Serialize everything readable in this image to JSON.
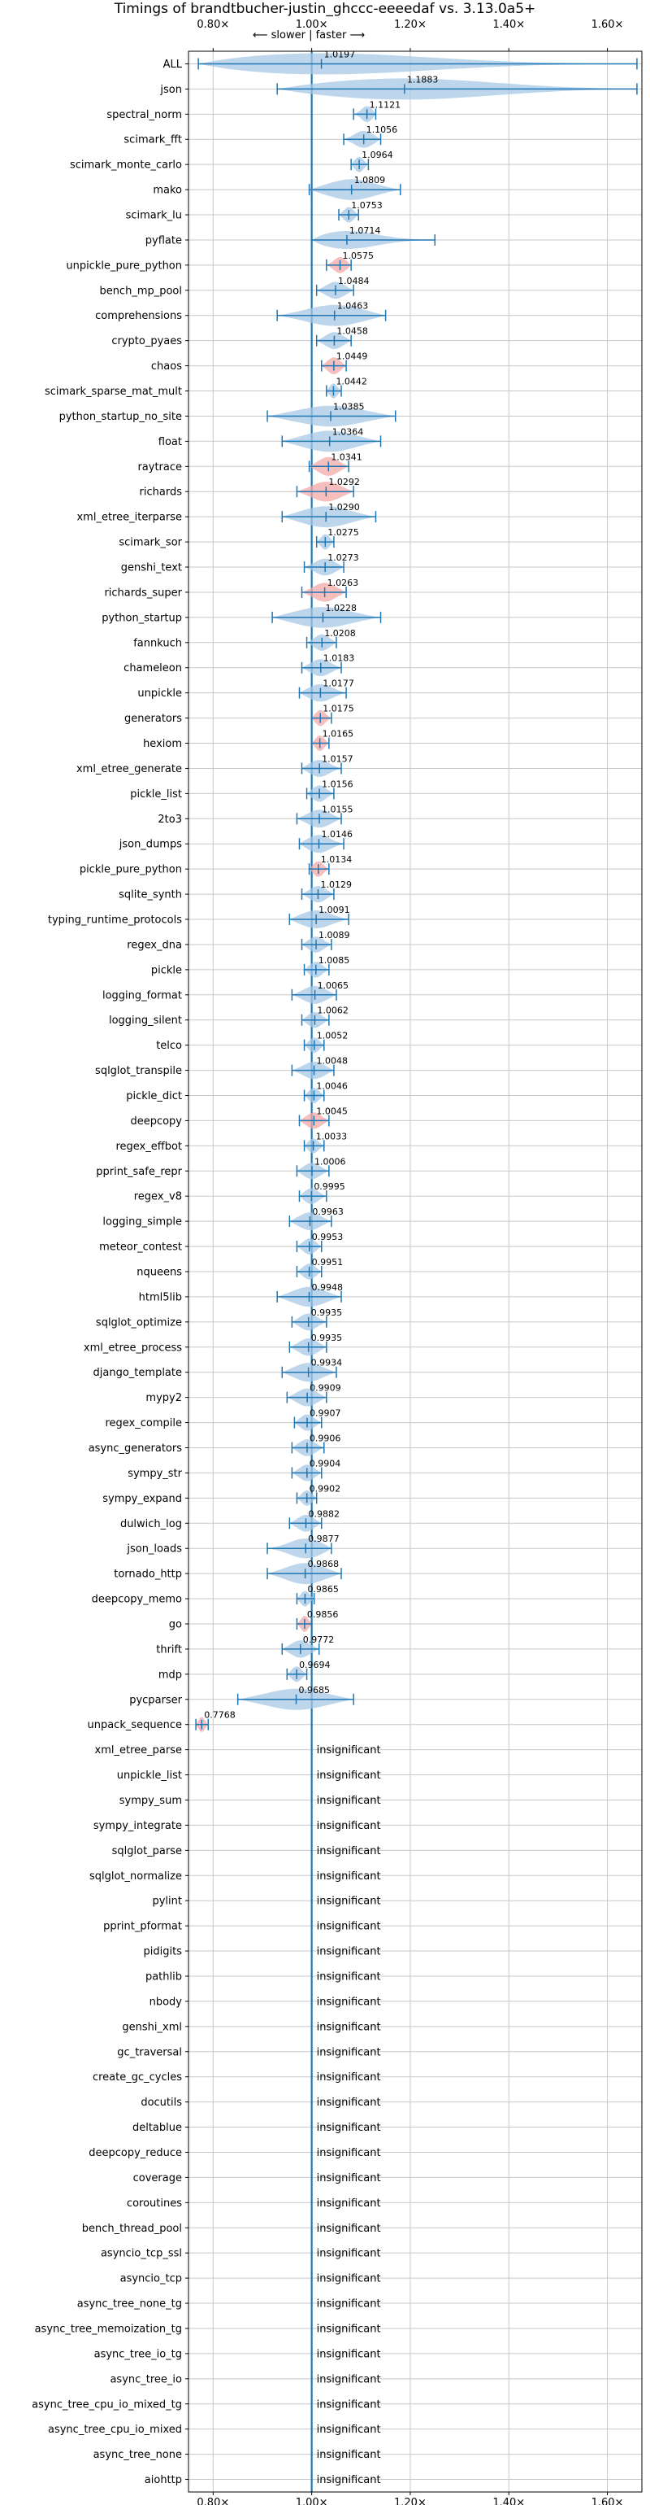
{
  "chart_data": {
    "type": "violin",
    "title": "Timings of brandtbucher-justin_ghccc-eeeedaf vs. 3.13.0a5+",
    "direction_label": "⟵ slower | faster ⟶",
    "x_tick_values": [
      0.8,
      1.0,
      1.2,
      1.4,
      1.6
    ],
    "x_tick_labels": [
      "0.80×",
      "1.00×",
      "1.20×",
      "1.40×",
      "1.60×"
    ],
    "xlim": [
      0.75,
      1.67
    ],
    "insignificant_label": "insignificant",
    "colors": {
      "violin": "#a7c8e6",
      "accent": "#1f77b4",
      "highlight": "#f4a8a8",
      "grid": "#c8c8c8"
    },
    "benchmarks": [
      {
        "name": "ALL",
        "value": 1.0197,
        "label": "1.0197",
        "min": 0.77,
        "max": 1.66,
        "width": 0.11,
        "highlight": false
      },
      {
        "name": "json",
        "value": 1.1883,
        "label": "1.1883",
        "min": 0.93,
        "max": 1.66,
        "width": 0.35,
        "highlight": false
      },
      {
        "name": "spectral_norm",
        "value": 1.1121,
        "label": "1.1121",
        "min": 1.085,
        "max": 1.13,
        "width": 0.03,
        "highlight": false
      },
      {
        "name": "scimark_fft",
        "value": 1.1056,
        "label": "1.1056",
        "min": 1.065,
        "max": 1.14,
        "width": 0.04,
        "highlight": false
      },
      {
        "name": "scimark_monte_carlo",
        "value": 1.0964,
        "label": "1.0964",
        "min": 1.08,
        "max": 1.115,
        "width": 0.025,
        "highlight": false
      },
      {
        "name": "mako",
        "value": 1.0809,
        "label": "1.0809",
        "min": 0.995,
        "max": 1.18,
        "width": 0.08,
        "highlight": false
      },
      {
        "name": "scimark_lu",
        "value": 1.0753,
        "label": "1.0753",
        "min": 1.055,
        "max": 1.095,
        "width": 0.025,
        "highlight": false
      },
      {
        "name": "pyflate",
        "value": 1.0714,
        "label": "1.0714",
        "min": 1.0,
        "max": 1.25,
        "width": 0.05,
        "highlight": false
      },
      {
        "name": "unpickle_pure_python",
        "value": 1.0575,
        "label": "1.0575",
        "min": 1.03,
        "max": 1.08,
        "width": 0.03,
        "highlight": true
      },
      {
        "name": "bench_mp_pool",
        "value": 1.0484,
        "label": "1.0484",
        "min": 1.01,
        "max": 1.085,
        "width": 0.04,
        "highlight": false
      },
      {
        "name": "comprehensions",
        "value": 1.0463,
        "label": "1.0463",
        "min": 0.93,
        "max": 1.15,
        "width": 0.1,
        "highlight": false
      },
      {
        "name": "crypto_pyaes",
        "value": 1.0458,
        "label": "1.0458",
        "min": 1.01,
        "max": 1.08,
        "width": 0.04,
        "highlight": false
      },
      {
        "name": "chaos",
        "value": 1.0449,
        "label": "1.0449",
        "min": 1.02,
        "max": 1.07,
        "width": 0.04,
        "highlight": true
      },
      {
        "name": "scimark_sparse_mat_mult",
        "value": 1.0442,
        "label": "1.0442",
        "min": 1.03,
        "max": 1.06,
        "width": 0.02,
        "highlight": false
      },
      {
        "name": "python_startup_no_site",
        "value": 1.0385,
        "label": "1.0385",
        "min": 0.91,
        "max": 1.17,
        "width": 0.08,
        "highlight": false
      },
      {
        "name": "float",
        "value": 1.0364,
        "label": "1.0364",
        "min": 0.94,
        "max": 1.14,
        "width": 0.09,
        "highlight": false
      },
      {
        "name": "raytrace",
        "value": 1.0341,
        "label": "1.0341",
        "min": 0.995,
        "max": 1.075,
        "width": 0.06,
        "highlight": true
      },
      {
        "name": "richards",
        "value": 1.0292,
        "label": "1.0292",
        "min": 0.97,
        "max": 1.085,
        "width": 0.07,
        "highlight": true
      },
      {
        "name": "xml_etree_iterparse",
        "value": 1.029,
        "label": "1.0290",
        "min": 0.94,
        "max": 1.13,
        "width": 0.09,
        "highlight": false
      },
      {
        "name": "scimark_sor",
        "value": 1.0275,
        "label": "1.0275",
        "min": 1.01,
        "max": 1.045,
        "width": 0.025,
        "highlight": false
      },
      {
        "name": "genshi_text",
        "value": 1.0273,
        "label": "1.0273",
        "min": 0.985,
        "max": 1.065,
        "width": 0.04,
        "highlight": false
      },
      {
        "name": "richards_super",
        "value": 1.0263,
        "label": "1.0263",
        "min": 0.98,
        "max": 1.07,
        "width": 0.06,
        "highlight": true
      },
      {
        "name": "python_startup",
        "value": 1.0228,
        "label": "1.0228",
        "min": 0.92,
        "max": 1.14,
        "width": 0.08,
        "highlight": false
      },
      {
        "name": "fannkuch",
        "value": 1.0208,
        "label": "1.0208",
        "min": 0.99,
        "max": 1.05,
        "width": 0.035,
        "highlight": false
      },
      {
        "name": "chameleon",
        "value": 1.0183,
        "label": "1.0183",
        "min": 0.98,
        "max": 1.06,
        "width": 0.04,
        "highlight": false
      },
      {
        "name": "unpickle",
        "value": 1.0177,
        "label": "1.0177",
        "min": 0.975,
        "max": 1.07,
        "width": 0.045,
        "highlight": false
      },
      {
        "name": "generators",
        "value": 1.0175,
        "label": "1.0175",
        "min": 1.0,
        "max": 1.04,
        "width": 0.03,
        "highlight": true
      },
      {
        "name": "hexiom",
        "value": 1.0165,
        "label": "1.0165",
        "min": 1.0,
        "max": 1.035,
        "width": 0.025,
        "highlight": true
      },
      {
        "name": "xml_etree_generate",
        "value": 1.0157,
        "label": "1.0157",
        "min": 0.98,
        "max": 1.06,
        "width": 0.04,
        "highlight": false
      },
      {
        "name": "pickle_list",
        "value": 1.0156,
        "label": "1.0156",
        "min": 0.99,
        "max": 1.045,
        "width": 0.035,
        "highlight": false
      },
      {
        "name": "2to3",
        "value": 1.0155,
        "label": "1.0155",
        "min": 0.97,
        "max": 1.06,
        "width": 0.05,
        "highlight": false
      },
      {
        "name": "json_dumps",
        "value": 1.0146,
        "label": "1.0146",
        "min": 0.975,
        "max": 1.065,
        "width": 0.05,
        "highlight": false
      },
      {
        "name": "pickle_pure_python",
        "value": 1.0134,
        "label": "1.0134",
        "min": 0.995,
        "max": 1.035,
        "width": 0.025,
        "highlight": true
      },
      {
        "name": "sqlite_synth",
        "value": 1.0129,
        "label": "1.0129",
        "min": 0.98,
        "max": 1.045,
        "width": 0.035,
        "highlight": false
      },
      {
        "name": "typing_runtime_protocols",
        "value": 1.0091,
        "label": "1.0091",
        "min": 0.955,
        "max": 1.075,
        "width": 0.05,
        "highlight": false
      },
      {
        "name": "regex_dna",
        "value": 1.0089,
        "label": "1.0089",
        "min": 0.98,
        "max": 1.04,
        "width": 0.03,
        "highlight": false
      },
      {
        "name": "pickle",
        "value": 1.0085,
        "label": "1.0085",
        "min": 0.985,
        "max": 1.035,
        "width": 0.03,
        "highlight": false
      },
      {
        "name": "logging_format",
        "value": 1.0065,
        "label": "1.0065",
        "min": 0.96,
        "max": 1.05,
        "width": 0.05,
        "highlight": false
      },
      {
        "name": "logging_silent",
        "value": 1.0062,
        "label": "1.0062",
        "min": 0.98,
        "max": 1.035,
        "width": 0.03,
        "highlight": false
      },
      {
        "name": "telco",
        "value": 1.0052,
        "label": "1.0052",
        "min": 0.985,
        "max": 1.025,
        "width": 0.025,
        "highlight": false
      },
      {
        "name": "sqlglot_transpile",
        "value": 1.0048,
        "label": "1.0048",
        "min": 0.96,
        "max": 1.045,
        "width": 0.045,
        "highlight": false
      },
      {
        "name": "pickle_dict",
        "value": 1.0046,
        "label": "1.0046",
        "min": 0.985,
        "max": 1.025,
        "width": 0.025,
        "highlight": false
      },
      {
        "name": "deepcopy",
        "value": 1.0045,
        "label": "1.0045",
        "min": 0.975,
        "max": 1.035,
        "width": 0.035,
        "highlight": true
      },
      {
        "name": "regex_effbot",
        "value": 1.0033,
        "label": "1.0033",
        "min": 0.985,
        "max": 1.025,
        "width": 0.02,
        "highlight": false
      },
      {
        "name": "pprint_safe_repr",
        "value": 1.0006,
        "label": "1.0006",
        "min": 0.97,
        "max": 1.035,
        "width": 0.035,
        "highlight": false
      },
      {
        "name": "regex_v8",
        "value": 0.9995,
        "label": "0.9995",
        "min": 0.975,
        "max": 1.03,
        "width": 0.03,
        "highlight": false
      },
      {
        "name": "logging_simple",
        "value": 0.9963,
        "label": "0.9963",
        "min": 0.955,
        "max": 1.04,
        "width": 0.05,
        "highlight": false
      },
      {
        "name": "meteor_contest",
        "value": 0.9953,
        "label": "0.9953",
        "min": 0.97,
        "max": 1.02,
        "width": 0.03,
        "highlight": false
      },
      {
        "name": "nqueens",
        "value": 0.9951,
        "label": "0.9951",
        "min": 0.97,
        "max": 1.02,
        "width": 0.03,
        "highlight": false
      },
      {
        "name": "html5lib",
        "value": 0.9948,
        "label": "0.9948",
        "min": 0.93,
        "max": 1.06,
        "width": 0.07,
        "highlight": false
      },
      {
        "name": "sqlglot_optimize",
        "value": 0.9935,
        "label": "0.9935",
        "min": 0.96,
        "max": 1.03,
        "width": 0.04,
        "highlight": false
      },
      {
        "name": "xml_etree_process",
        "value": 0.9935,
        "label": "0.9935",
        "min": 0.955,
        "max": 1.03,
        "width": 0.045,
        "highlight": false
      },
      {
        "name": "django_template",
        "value": 0.9934,
        "label": "0.9934",
        "min": 0.94,
        "max": 1.05,
        "width": 0.06,
        "highlight": false
      },
      {
        "name": "mypy2",
        "value": 0.9909,
        "label": "0.9909",
        "min": 0.95,
        "max": 1.03,
        "width": 0.05,
        "highlight": false
      },
      {
        "name": "regex_compile",
        "value": 0.9907,
        "label": "0.9907",
        "min": 0.965,
        "max": 1.02,
        "width": 0.035,
        "highlight": false
      },
      {
        "name": "async_generators",
        "value": 0.9906,
        "label": "0.9906",
        "min": 0.96,
        "max": 1.025,
        "width": 0.04,
        "highlight": false
      },
      {
        "name": "sympy_str",
        "value": 0.9904,
        "label": "0.9904",
        "min": 0.96,
        "max": 1.02,
        "width": 0.035,
        "highlight": false
      },
      {
        "name": "sympy_expand",
        "value": 0.9902,
        "label": "0.9902",
        "min": 0.97,
        "max": 1.01,
        "width": 0.025,
        "highlight": false
      },
      {
        "name": "dulwich_log",
        "value": 0.9882,
        "label": "0.9882",
        "min": 0.955,
        "max": 1.02,
        "width": 0.04,
        "highlight": false
      },
      {
        "name": "json_loads",
        "value": 0.9877,
        "label": "0.9877",
        "min": 0.91,
        "max": 1.04,
        "width": 0.07,
        "highlight": false
      },
      {
        "name": "tornado_http",
        "value": 0.9868,
        "label": "0.9868",
        "min": 0.91,
        "max": 1.06,
        "width": 0.09,
        "highlight": false
      },
      {
        "name": "deepcopy_memo",
        "value": 0.9865,
        "label": "0.9865",
        "min": 0.97,
        "max": 1.005,
        "width": 0.025,
        "highlight": false
      },
      {
        "name": "go",
        "value": 0.9856,
        "label": "0.9856",
        "min": 0.97,
        "max": 1.0,
        "width": 0.03,
        "highlight": true
      },
      {
        "name": "thrift",
        "value": 0.9772,
        "label": "0.9772",
        "min": 0.94,
        "max": 1.015,
        "width": 0.045,
        "highlight": false
      },
      {
        "name": "mdp",
        "value": 0.9694,
        "label": "0.9694",
        "min": 0.95,
        "max": 0.99,
        "width": 0.025,
        "highlight": false
      },
      {
        "name": "pycparser",
        "value": 0.9685,
        "label": "0.9685",
        "min": 0.85,
        "max": 1.085,
        "width": 0.11,
        "highlight": false
      },
      {
        "name": "unpack_sequence",
        "value": 0.7768,
        "label": "0.7768",
        "min": 0.765,
        "max": 0.79,
        "width": 0.02,
        "highlight": true
      },
      {
        "name": "xml_etree_parse",
        "insignificant": true
      },
      {
        "name": "unpickle_list",
        "insignificant": true
      },
      {
        "name": "sympy_sum",
        "insignificant": true
      },
      {
        "name": "sympy_integrate",
        "insignificant": true
      },
      {
        "name": "sqlglot_parse",
        "insignificant": true
      },
      {
        "name": "sqlglot_normalize",
        "insignificant": true
      },
      {
        "name": "pylint",
        "insignificant": true
      },
      {
        "name": "pprint_pformat",
        "insignificant": true
      },
      {
        "name": "pidigits",
        "insignificant": true
      },
      {
        "name": "pathlib",
        "insignificant": true
      },
      {
        "name": "nbody",
        "insignificant": true
      },
      {
        "name": "genshi_xml",
        "insignificant": true
      },
      {
        "name": "gc_traversal",
        "insignificant": true
      },
      {
        "name": "create_gc_cycles",
        "insignificant": true
      },
      {
        "name": "docutils",
        "insignificant": true
      },
      {
        "name": "deltablue",
        "insignificant": true
      },
      {
        "name": "deepcopy_reduce",
        "insignificant": true
      },
      {
        "name": "coverage",
        "insignificant": true
      },
      {
        "name": "coroutines",
        "insignificant": true
      },
      {
        "name": "bench_thread_pool",
        "insignificant": true
      },
      {
        "name": "asyncio_tcp_ssl",
        "insignificant": true
      },
      {
        "name": "asyncio_tcp",
        "insignificant": true
      },
      {
        "name": "async_tree_none_tg",
        "insignificant": true
      },
      {
        "name": "async_tree_memoization_tg",
        "insignificant": true
      },
      {
        "name": "async_tree_io_tg",
        "insignificant": true
      },
      {
        "name": "async_tree_io",
        "insignificant": true
      },
      {
        "name": "async_tree_cpu_io_mixed_tg",
        "insignificant": true
      },
      {
        "name": "async_tree_cpu_io_mixed",
        "insignificant": true
      },
      {
        "name": "async_tree_none",
        "insignificant": true
      },
      {
        "name": "aiohttp",
        "insignificant": true
      }
    ]
  }
}
